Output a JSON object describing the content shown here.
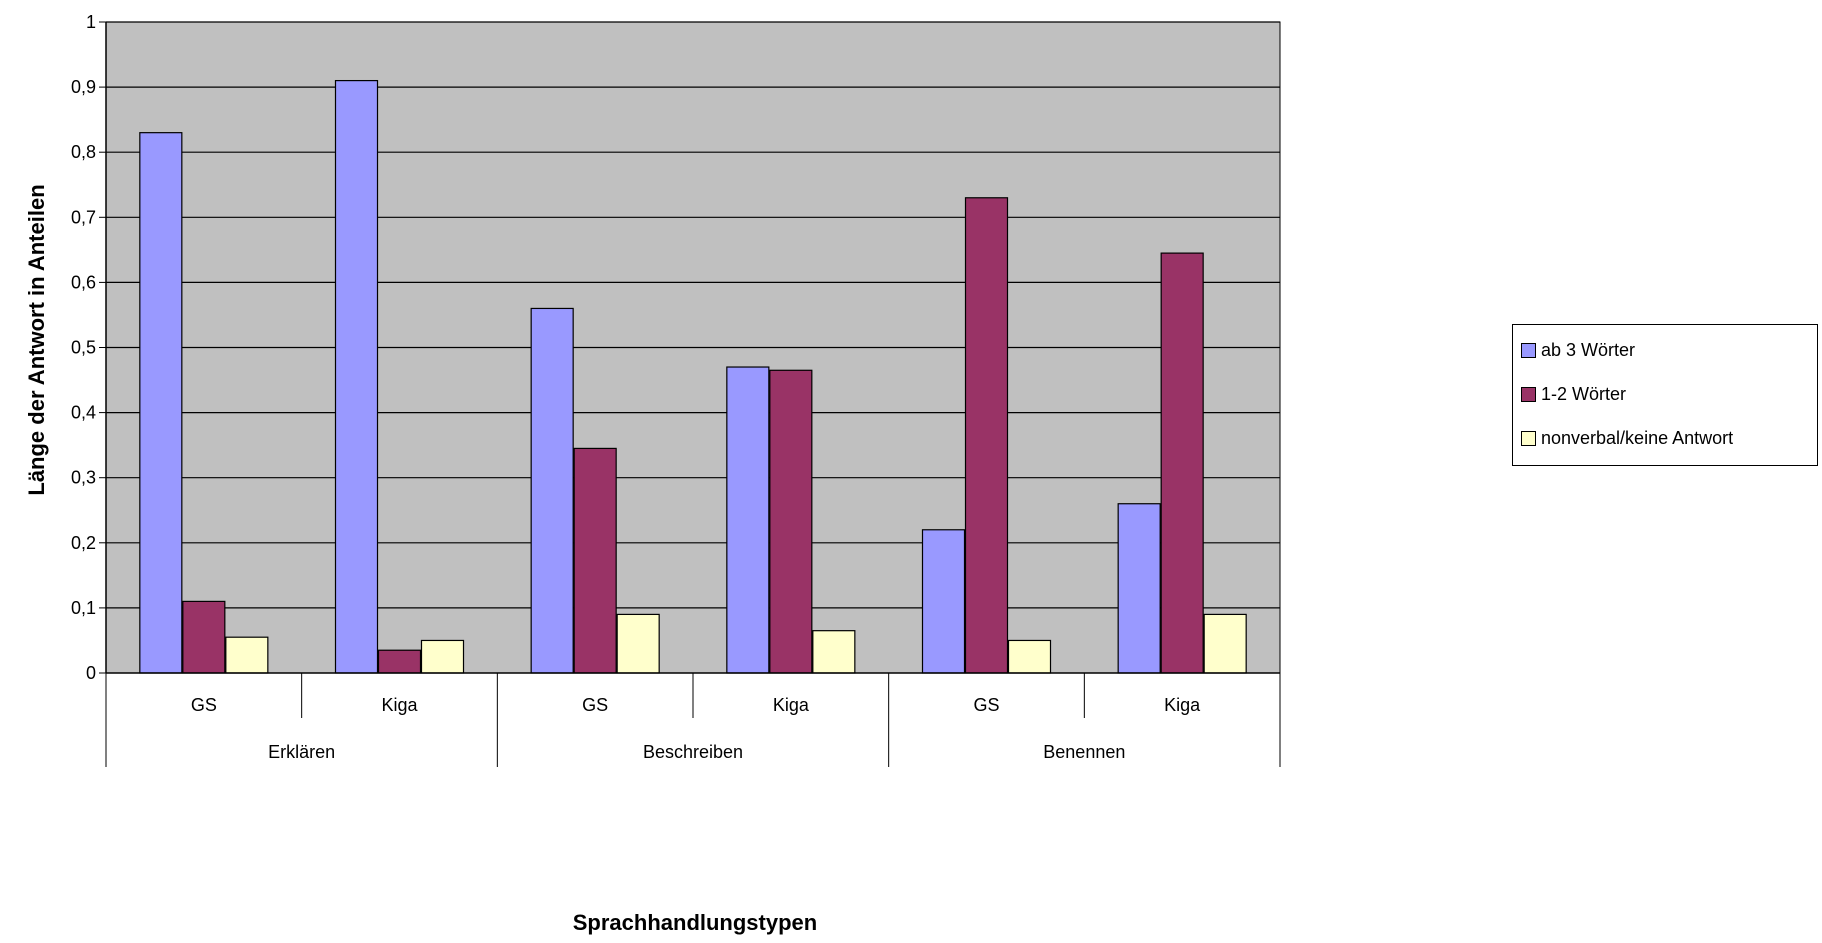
{
  "chart_data": {
    "type": "bar",
    "title": "",
    "xlabel": "Sprachhandlungstypen",
    "ylabel": "Länge der Antwort in Anteilen",
    "ylim": [
      0,
      1
    ],
    "yticks": [
      "0",
      "0,1",
      "0,2",
      "0,3",
      "0,4",
      "0,5",
      "0,6",
      "0,7",
      "0,8",
      "0,9",
      "1"
    ],
    "categories": [
      {
        "group": "Erklären",
        "label": "GS"
      },
      {
        "group": "Erklären",
        "label": "Kiga"
      },
      {
        "group": "Beschreiben",
        "label": "GS"
      },
      {
        "group": "Beschreiben",
        "label": "Kiga"
      },
      {
        "group": "Benennen",
        "label": "GS"
      },
      {
        "group": "Benennen",
        "label": "Kiga"
      }
    ],
    "groups": [
      "Erklären",
      "Beschreiben",
      "Benennen"
    ],
    "series": [
      {
        "name": "ab 3 Wörter",
        "color": "#9999ff",
        "values": [
          0.83,
          0.91,
          0.56,
          0.47,
          0.22,
          0.26
        ]
      },
      {
        "name": "1-2 Wörter",
        "color": "#993366",
        "values": [
          0.11,
          0.035,
          0.345,
          0.465,
          0.73,
          0.645
        ]
      },
      {
        "name": "nonverbal/keine Antwort",
        "color": "#ffffcc",
        "values": [
          0.055,
          0.05,
          0.09,
          0.065,
          0.05,
          0.09
        ]
      }
    ],
    "plot_background": "#c0c0c0",
    "grid": true,
    "legend_position": "right"
  }
}
